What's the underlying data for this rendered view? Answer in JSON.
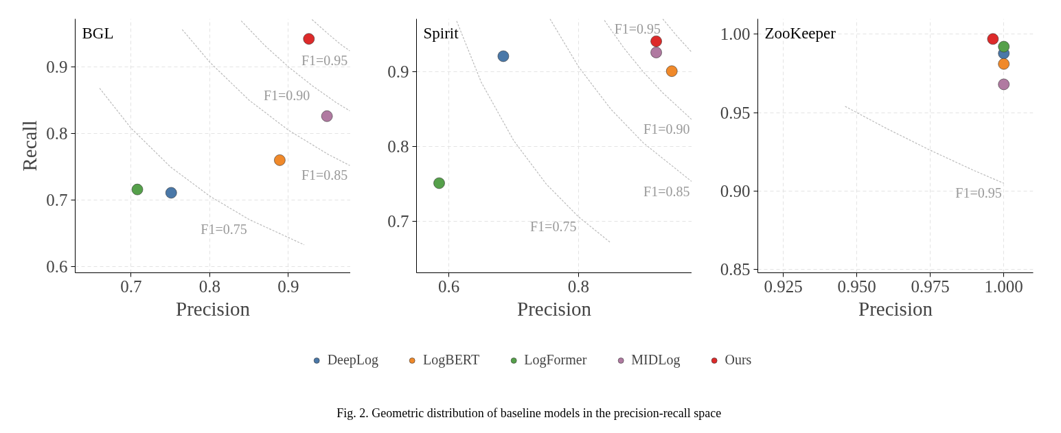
{
  "chart_data": [
    {
      "type": "scatter",
      "title": "BGL",
      "xlabel": "Precision",
      "ylabel": "Recall",
      "xlim": [
        0.629,
        0.979
      ],
      "ylim": [
        0.591,
        0.972
      ],
      "xticks": [
        0.7,
        0.8,
        0.9
      ],
      "yticks": [
        0.6,
        0.7,
        0.8,
        0.9
      ],
      "grid": true,
      "marker": "circle",
      "legend": "bottom",
      "series": [
        {
          "name": "DeepLog",
          "color": "#4a78a8",
          "x": [
            0.751
          ],
          "values": [
            0.711
          ]
        },
        {
          "name": "LogBERT",
          "color": "#f0892a",
          "x": [
            0.889
          ],
          "values": [
            0.76
          ]
        },
        {
          "name": "LogFormer",
          "color": "#55a04a",
          "x": [
            0.708
          ],
          "values": [
            0.716
          ]
        },
        {
          "name": "MIDLog",
          "color": "#b07aa1",
          "x": [
            0.949
          ],
          "values": [
            0.826
          ]
        },
        {
          "name": "Ours",
          "color": "#dd2a2a",
          "x": [
            0.926
          ],
          "values": [
            0.942
          ]
        },
        {
          "type": "line",
          "marker": "none",
          "line_style": "dashed",
          "color": "#bbbbbb",
          "x": [
            0.66,
            0.7,
            0.75,
            0.8,
            0.85,
            0.92
          ],
          "values": [
            0.868,
            0.808,
            0.75,
            0.706,
            0.671,
            0.633
          ]
        },
        {
          "type": "line",
          "marker": "none",
          "line_style": "dashed",
          "color": "#bbbbbb",
          "x": [
            0.765,
            0.8,
            0.85,
            0.9,
            0.95,
            0.978
          ],
          "values": [
            0.956,
            0.907,
            0.85,
            0.805,
            0.769,
            0.752
          ]
        },
        {
          "type": "line",
          "marker": "none",
          "line_style": "dashed",
          "color": "#bbbbbb",
          "x": [
            0.84,
            0.87,
            0.9,
            0.93,
            0.96,
            0.978
          ],
          "values": [
            0.969,
            0.932,
            0.9,
            0.872,
            0.847,
            0.834
          ]
        },
        {
          "type": "line",
          "marker": "none",
          "line_style": "dashed",
          "color": "#bbbbbb",
          "x": [
            0.93,
            0.95,
            0.965,
            0.978
          ],
          "values": [
            0.971,
            0.95,
            0.935,
            0.924
          ]
        }
      ],
      "annotations": [
        {
          "text": "F1=0.75",
          "x": 0.85,
          "y": 0.671
        },
        {
          "text": "F1=0.85",
          "x": 0.978,
          "y": 0.752
        },
        {
          "text": "F1=0.90",
          "x": 0.93,
          "y": 0.872
        },
        {
          "text": "F1=0.95",
          "x": 0.978,
          "y": 0.924
        },
        "Fig. 2.  Geometric distribution of baseline models in the precision-recall space"
      ]
    },
    {
      "type": "scatter",
      "title": "Spirit",
      "xlabel": "Precision",
      "xlim": [
        0.55,
        0.975
      ],
      "ylim": [
        0.631,
        0.971
      ],
      "xticks": [
        0.6,
        0.8
      ],
      "yticks": [
        0.7,
        0.8,
        0.9
      ],
      "grid": true,
      "marker": "circle",
      "series": [
        {
          "color": "#4a78a8",
          "x": [
            0.684
          ],
          "values": [
            0.921
          ]
        },
        {
          "color": "#f0892a",
          "x": [
            0.944
          ],
          "values": [
            0.901
          ]
        },
        {
          "color": "#55a04a",
          "x": [
            0.585
          ],
          "values": [
            0.751
          ]
        },
        {
          "color": "#b07aa1",
          "x": [
            0.92
          ],
          "values": [
            0.926
          ]
        },
        {
          "color": "#dd2a2a",
          "x": [
            0.92
          ],
          "values": [
            0.941
          ]
        },
        {
          "type": "line",
          "marker": "none",
          "line_style": "dashed",
          "color": "#bbbbbb",
          "x": [
            0.612,
            0.65,
            0.7,
            0.75,
            0.8,
            0.85
          ],
          "values": [
            0.968,
            0.886,
            0.808,
            0.75,
            0.706,
            0.671
          ]
        },
        {
          "type": "line",
          "marker": "none",
          "line_style": "dashed",
          "color": "#bbbbbb",
          "x": [
            0.756,
            0.8,
            0.85,
            0.9,
            0.975
          ],
          "values": [
            0.971,
            0.907,
            0.85,
            0.805,
            0.753
          ]
        },
        {
          "type": "line",
          "marker": "none",
          "line_style": "dashed",
          "color": "#bbbbbb",
          "x": [
            0.84,
            0.87,
            0.9,
            0.93,
            0.975
          ],
          "values": [
            0.969,
            0.932,
            0.9,
            0.872,
            0.836
          ]
        },
        {
          "type": "line",
          "marker": "none",
          "line_style": "dashed",
          "color": "#bbbbbb",
          "x": [
            0.93,
            0.95,
            0.975
          ],
          "values": [
            0.971,
            0.95,
            0.926
          ]
        }
      ],
      "annotations": [
        {
          "text": "F1=0.75",
          "x": 0.8,
          "y": 0.706
        },
        {
          "text": "F1=0.85",
          "x": 0.975,
          "y": 0.753
        },
        {
          "text": "F1=0.90",
          "x": 0.975,
          "y": 0.836
        },
        {
          "text": "F1=0.95",
          "x": 0.93,
          "y": 0.971
        }
      ]
    },
    {
      "type": "scatter",
      "title": "ZooKeeper",
      "xlabel": "Precision",
      "xlim": [
        0.9163,
        1.01
      ],
      "ylim": [
        0.848,
        1.0097
      ],
      "xticks": [
        {
          "value": 0.925,
          "label": "0.925"
        },
        {
          "value": 0.95,
          "label": "0.950"
        },
        {
          "value": 0.975,
          "label": "0.975"
        },
        {
          "value": 1.0,
          "label": "1.000"
        }
      ],
      "yticks": [
        {
          "value": 0.85,
          "label": "0.85"
        },
        {
          "value": 0.9,
          "label": "0.90"
        },
        {
          "value": 0.95,
          "label": "0.95"
        },
        {
          "value": 1.0,
          "label": "1.00"
        }
      ],
      "grid": true,
      "marker": "circle",
      "series": [
        {
          "color": "#4a78a8",
          "x": [
            1.0
          ],
          "values": [
            0.9877
          ]
        },
        {
          "color": "#f0892a",
          "x": [
            1.0
          ],
          "values": [
            0.981
          ]
        },
        {
          "color": "#55a04a",
          "x": [
            1.0
          ],
          "values": [
            0.992
          ]
        },
        {
          "color": "#b07aa1",
          "x": [
            1.0
          ],
          "values": [
            0.968
          ]
        },
        {
          "color": "#dd2a2a",
          "x": [
            0.9963
          ],
          "values": [
            0.9969
          ]
        },
        {
          "type": "line",
          "marker": "none",
          "line_style": "dashed",
          "color": "#bbbbbb",
          "x": [
            0.946,
            0.96,
            0.975,
            0.99,
            1.0
          ],
          "values": [
            0.954,
            0.94,
            0.926,
            0.913,
            0.905
          ]
        }
      ],
      "annotations": [
        {
          "text": "F1=0.95",
          "x": 1.0,
          "y": 0.905
        }
      ]
    }
  ]
}
